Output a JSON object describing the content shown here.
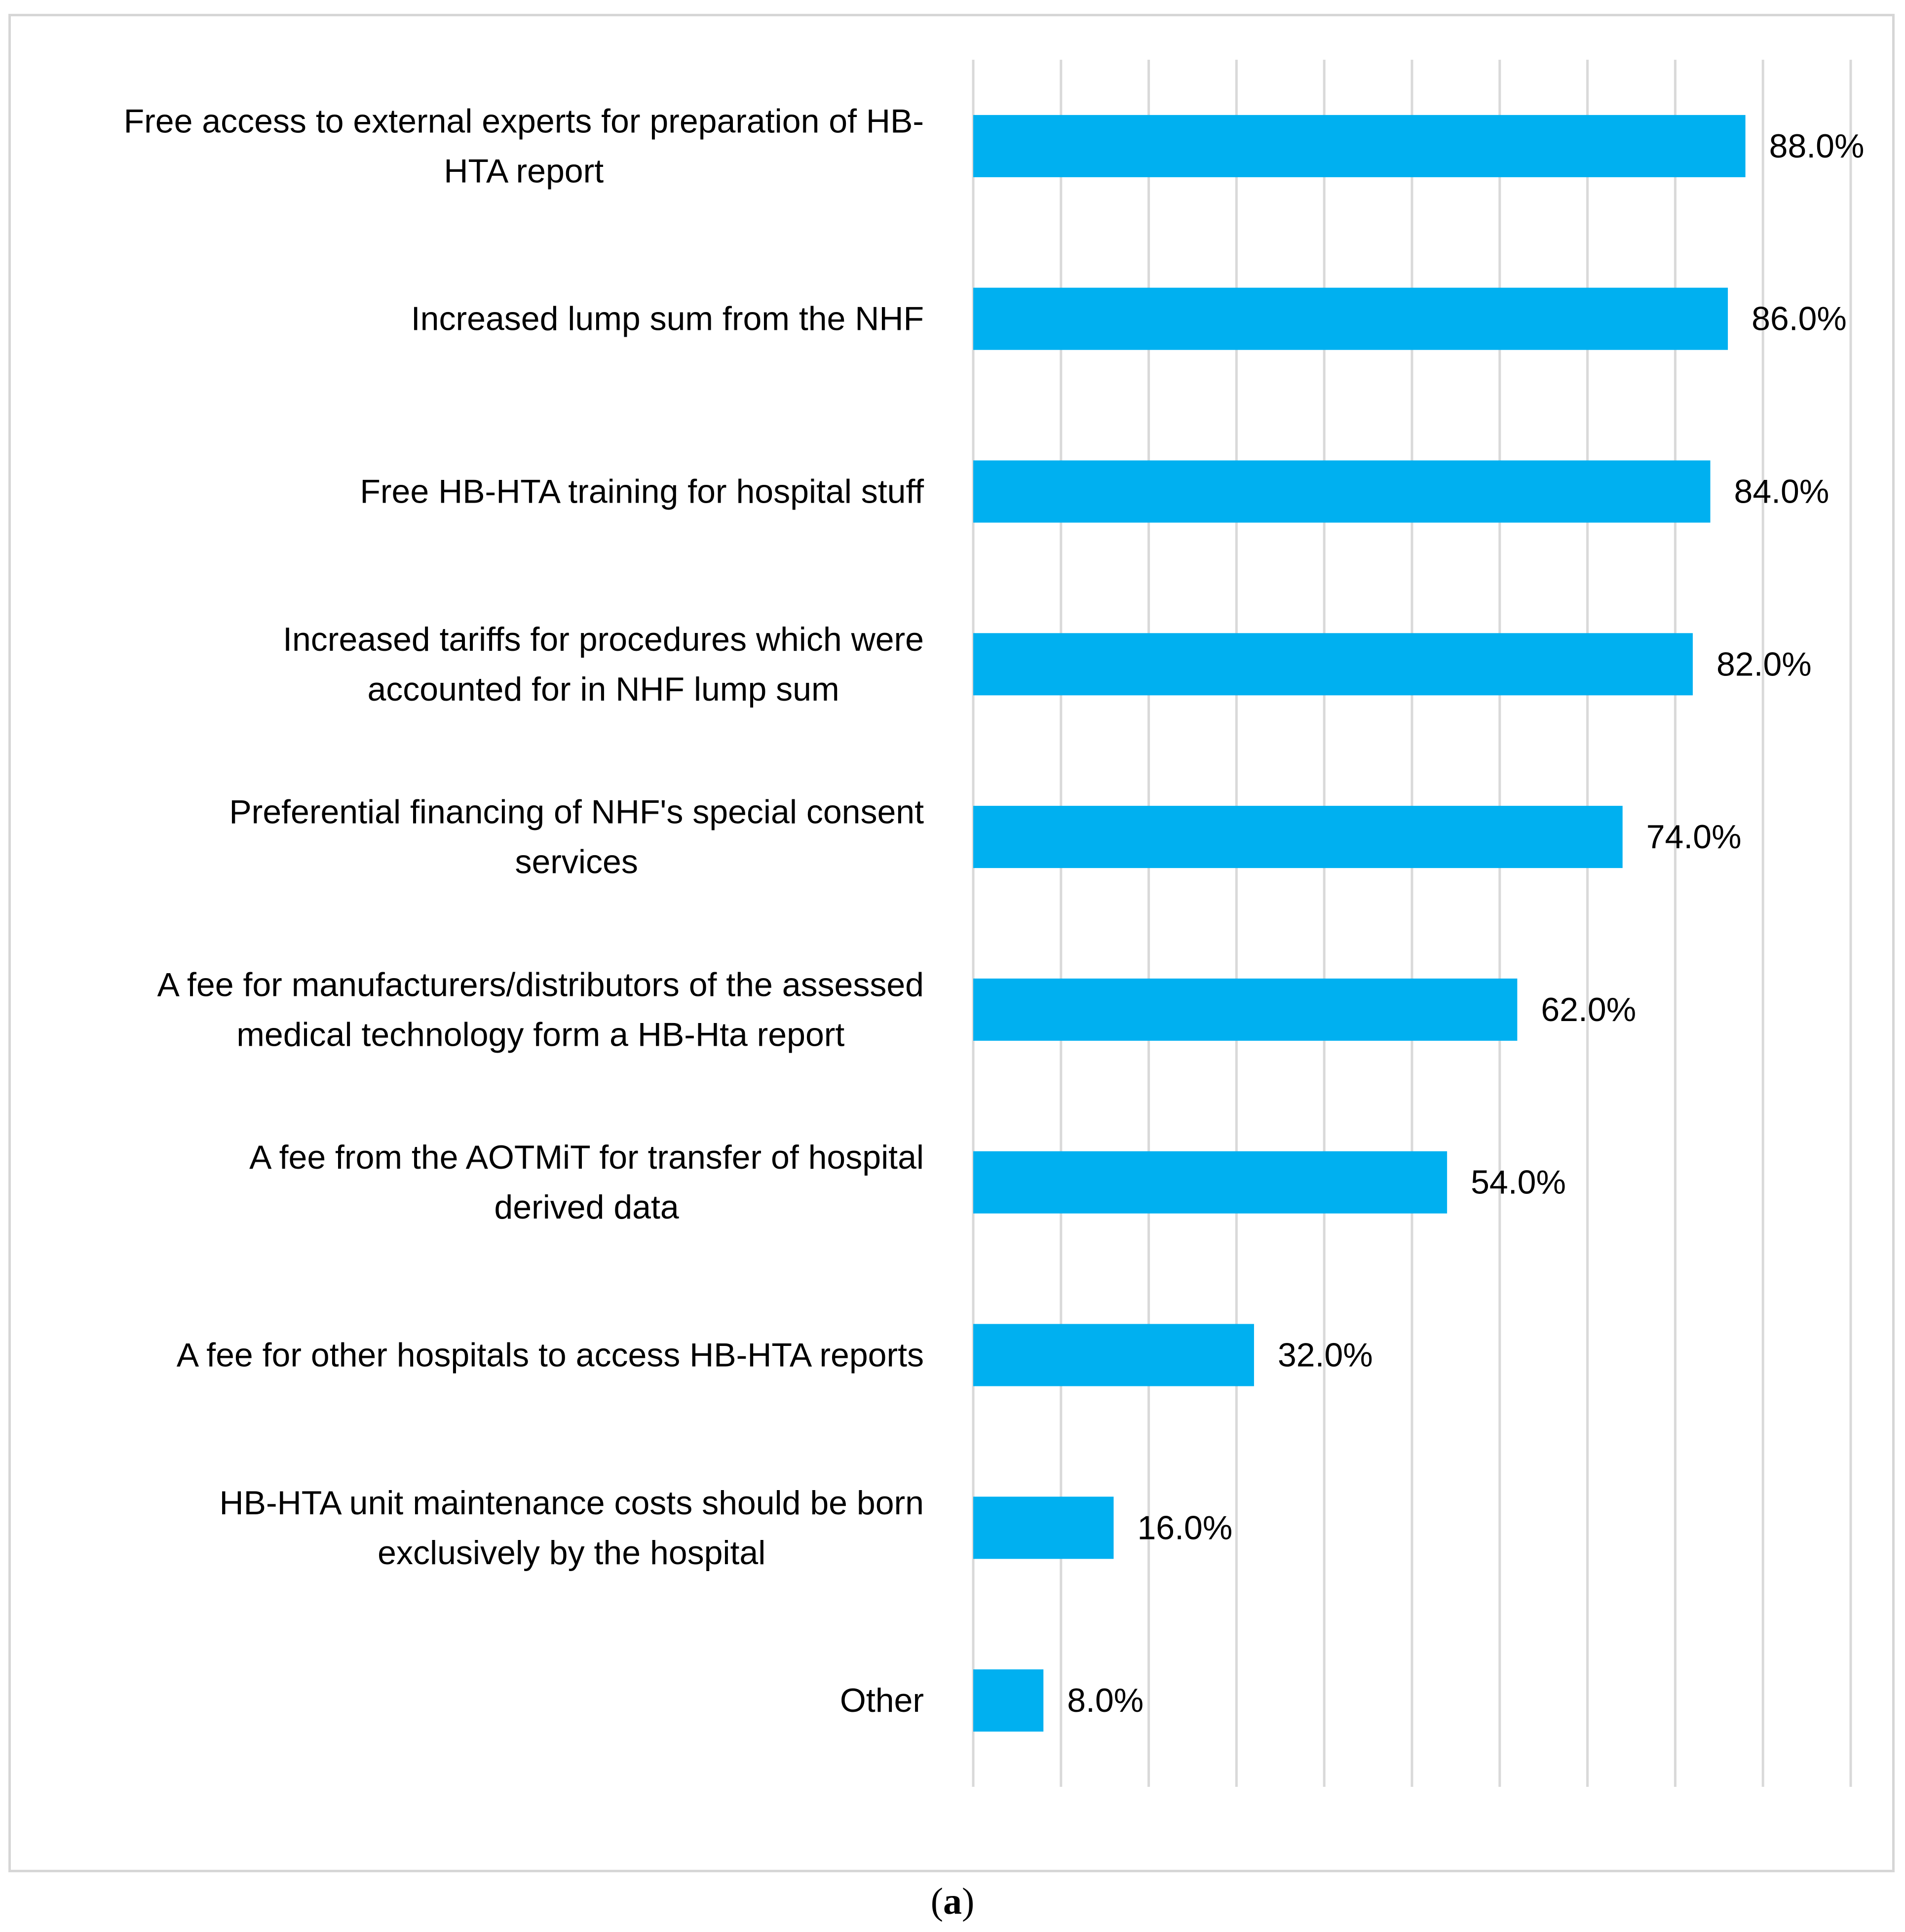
{
  "chart_data": {
    "type": "bar",
    "orientation": "horizontal",
    "title": "",
    "xlabel": "",
    "ylabel": "",
    "xlim": [
      0,
      100
    ],
    "grid": true,
    "bar_color": "#00B0F0",
    "grid_color": "#D9D9D9",
    "value_format": "percent_1dp",
    "categories": [
      [
        "Free access to external experts for preparation of HB-",
        "HTA report"
      ],
      [
        "Increased lump sum from the NHF"
      ],
      [
        "Free HB-HTA training for hospital stuff"
      ],
      [
        "Increased tariffs for procedures which were",
        "accounted for in NHF lump sum"
      ],
      [
        "Preferential financing of NHF's special consent",
        "services"
      ],
      [
        "A fee for manufacturers/distributors of the assessed",
        "medical technology form a HB-Hta report"
      ],
      [
        "A fee from the AOTMiT for transfer of hospital",
        "derived data"
      ],
      [
        "A fee for other hospitals to access HB-HTA reports"
      ],
      [
        "HB-HTA unit maintenance costs should be born",
        "exclusively by the hospital"
      ],
      [
        "Other"
      ]
    ],
    "values": [
      88.0,
      86.0,
      84.0,
      82.0,
      74.0,
      62.0,
      54.0,
      32.0,
      16.0,
      8.0
    ],
    "value_labels": [
      "88.0%",
      "86.0%",
      "84.0%",
      "82.0%",
      "74.0%",
      "62.0%",
      "54.0%",
      "32.0%",
      "16.0%",
      "8.0%"
    ]
  },
  "caption": {
    "open": "(",
    "letter": "a",
    "close": ")"
  }
}
